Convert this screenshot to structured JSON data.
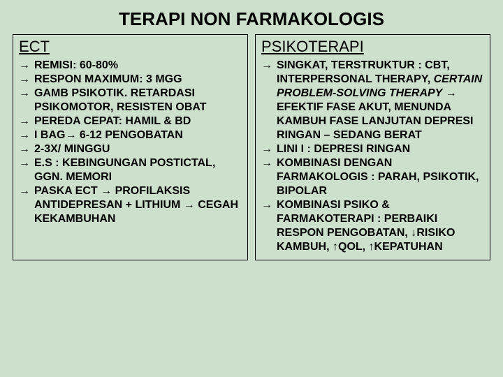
{
  "title": "TERAPI NON FARMAKOLOGIS",
  "background_color": "#cce0cc",
  "text_color": "#000000",
  "title_fontsize": 26,
  "heading_fontsize": 22,
  "body_fontsize": 16,
  "arrow_glyph": "→",
  "left": {
    "heading": "ECT",
    "items": [
      "REMISI: 60-80%",
      "RESPON MAXIMUM: 3 MGG",
      "GAMB PSIKOTIK. RETARDASI PSIKOMOTOR, RESISTEN OBAT",
      "PEREDA CEPAT: HAMIL & BD",
      " I BAG→ 6-12 PENGOBATAN",
      "2-3X/ MINGGU",
      "E.S : KEBINGUNGAN POSTICTAL, GGN. MEMORI",
      "PASKA ECT → PROFILAKSIS ANTIDEPRESAN + LITHIUM → CEGAH KEKAMBUHAN"
    ]
  },
  "right": {
    "heading": "PSIKOTERAPI",
    "items": [
      {
        "pre": "SINGKAT, TERSTRUKTUR : CBT, INTERPERSONAL THERAPY, ",
        "italic": "CERTAIN PROBLEM-SOLVING THERAPY",
        "post": " → EFEKTIF FASE AKUT, MENUNDA KAMBUH FASE LANJUTAN DEPRESI RINGAN – SEDANG BERAT"
      },
      {
        "pre": "LINI I : DEPRESI RINGAN",
        "italic": "",
        "post": ""
      },
      {
        "pre": "KOMBINASI DENGAN FARMAKOLOGIS : PARAH, PSIKOTIK, BIPOLAR",
        "italic": "",
        "post": ""
      },
      {
        "pre": "KOMBINASI PSIKO & FARMAKOTERAPI : PERBAIKI RESPON PENGOBATAN, ↓RISIKO KAMBUH, ↑QOL, ↑KEPATUHAN",
        "italic": "",
        "post": ""
      }
    ]
  }
}
